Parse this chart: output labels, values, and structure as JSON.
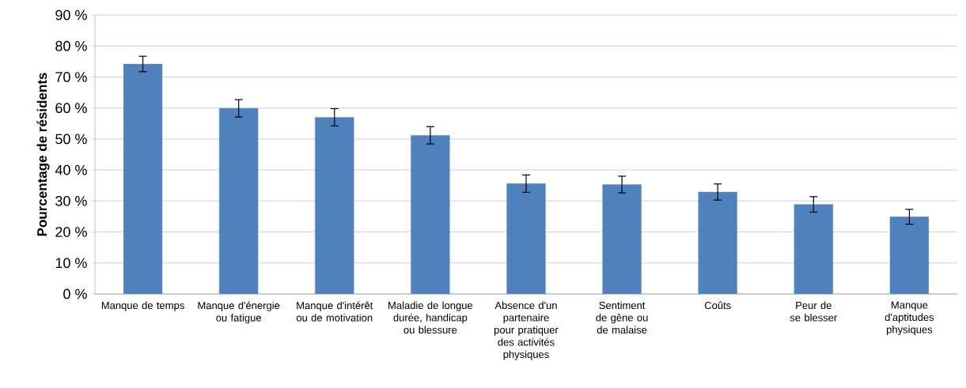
{
  "chart_data": {
    "type": "bar",
    "ylabel": "Pourcentage de résidents",
    "categories": [
      "Manque de temps",
      "Manque d'énergie ou fatigue",
      "Manque d'intérêt ou de motivation",
      "Maladie de longue durée, handicap ou blessure",
      "Absence d'un partenaire pour pratiquer des activités physiques",
      "Sentiment de gêne ou de malaise",
      "Coûts",
      "Peur de se blesser",
      "Manque d'aptitudes physiques"
    ],
    "values": [
      74.2,
      59.9,
      57.0,
      51.2,
      35.6,
      35.3,
      32.9,
      28.9,
      24.9
    ],
    "errors": [
      2.5,
      2.8,
      2.8,
      2.8,
      2.8,
      2.7,
      2.6,
      2.5,
      2.4
    ],
    "color": "#4f81bd",
    "ylim": [
      0,
      90
    ],
    "yticks": [
      {
        "value": 0,
        "label": "0 %"
      },
      {
        "value": 10,
        "label": "10 %"
      },
      {
        "value": 20,
        "label": "20 %"
      },
      {
        "value": 30,
        "label": "30 %"
      },
      {
        "value": 40,
        "label": "40 %"
      },
      {
        "value": 50,
        "label": "50 %"
      },
      {
        "value": 60,
        "label": "60 %"
      },
      {
        "value": 70,
        "label": "70 %"
      },
      {
        "value": 80,
        "label": "80 %"
      },
      {
        "value": 90,
        "label": "90 %"
      }
    ],
    "grid": "y"
  }
}
